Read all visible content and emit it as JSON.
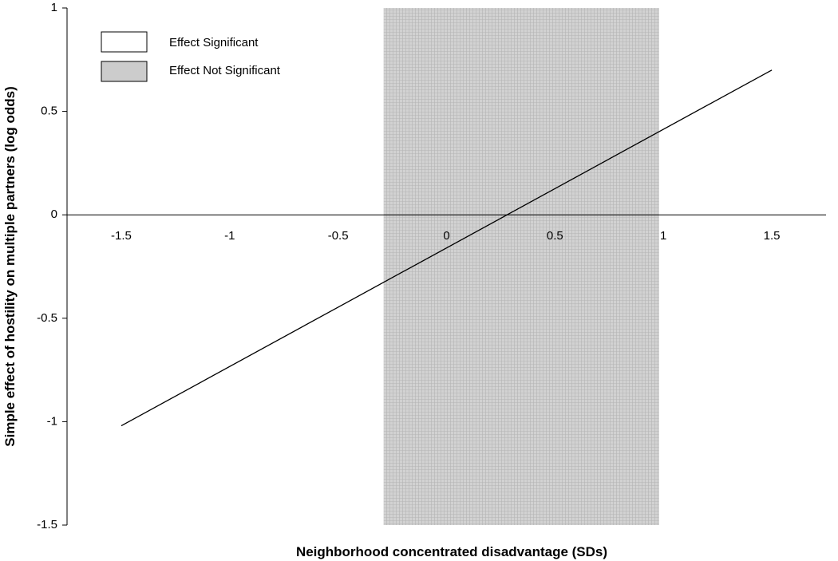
{
  "chart_data": {
    "type": "line",
    "title": "",
    "xlabel": "Neighborhood concentrated disadvantage (SDs)",
    "ylabel": "Simple effect of hostility on multiple partners (log odds)",
    "xlim": [
      -1.75,
      1.75
    ],
    "ylim": [
      -1.5,
      1
    ],
    "x_ticks": [
      "-1.5",
      "-1",
      "-0.5",
      "0",
      "0.5",
      "1",
      "1.5"
    ],
    "x_tick_values": [
      -1.5,
      -1,
      -0.5,
      0,
      0.5,
      1,
      1.5
    ],
    "y_ticks": [
      "1",
      "0.5",
      "0",
      "-0.5",
      "-1",
      "-1.5"
    ],
    "y_tick_values": [
      1,
      0.5,
      0,
      -0.5,
      -1,
      -1.5
    ],
    "series": [
      {
        "x": [
          -1.5,
          1.5
        ],
        "y": [
          -1.02,
          0.7
        ]
      }
    ],
    "not_significant_region": [
      -0.29,
      0.98
    ],
    "legend": {
      "placement": "top-left",
      "entries": [
        {
          "label": "Effect Significant",
          "color": "#ffffff"
        },
        {
          "label": "Effect Not Significant",
          "color": "#cccccc"
        }
      ]
    },
    "grid": false
  }
}
